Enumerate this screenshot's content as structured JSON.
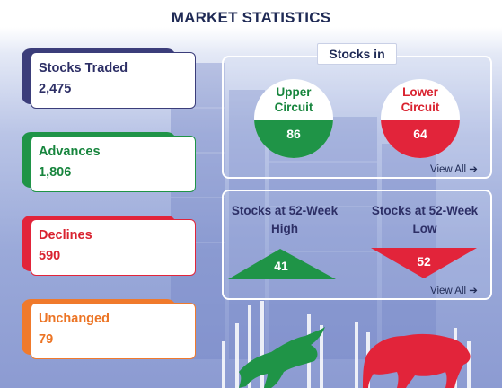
{
  "page": {
    "title": "MARKET STATISTICS"
  },
  "stats": {
    "traded": {
      "label": "Stocks Traded",
      "value": "2,475"
    },
    "advances": {
      "label": "Advances",
      "value": "1,806"
    },
    "declines": {
      "label": "Declines",
      "value": "590"
    },
    "unchanged": {
      "label": "Unchanged",
      "value": "79"
    }
  },
  "circuit_panel": {
    "heading": "Stocks in",
    "upper": {
      "label_line1": "Upper",
      "label_line2": "Circuit",
      "value": "86"
    },
    "lower": {
      "label_line1": "Lower",
      "label_line2": "Circuit",
      "value": "64"
    },
    "view_all": "View All ➔"
  },
  "week52_panel": {
    "high": {
      "label_line1": "Stocks at 52-Week",
      "label_line2": "High",
      "value": "41"
    },
    "low": {
      "label_line1": "Stocks at 52-Week",
      "label_line2": "Low",
      "value": "52"
    },
    "view_all": "View All ➔"
  },
  "colors": {
    "navy": "#2d2f66",
    "green": "#1f9447",
    "red": "#e2243a",
    "orange": "#f07a2c"
  },
  "icons": [
    "bull-icon",
    "bear-icon",
    "chevron-right-icon"
  ]
}
